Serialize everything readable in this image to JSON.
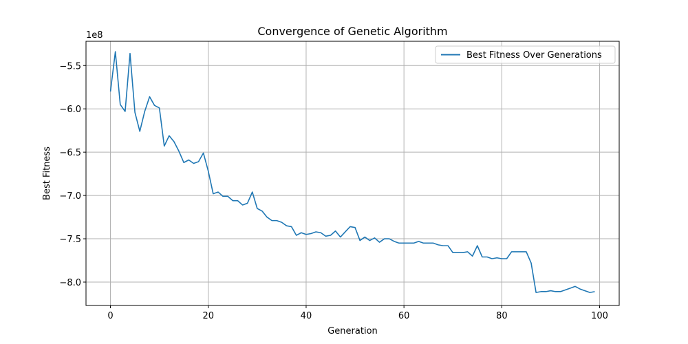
{
  "chart_data": {
    "type": "line",
    "title": "Convergence of Genetic Algorithm",
    "xlabel": "Generation",
    "ylabel": "Best Fitness",
    "y_offset_text": "1e8",
    "xlim": [
      -5,
      104
    ],
    "ylim": [
      -8.27,
      -5.22
    ],
    "x_ticks": [
      0,
      20,
      40,
      60,
      80,
      100
    ],
    "x_tick_labels": [
      "0",
      "20",
      "40",
      "60",
      "80",
      "100"
    ],
    "y_ticks": [
      -8.0,
      -7.5,
      -7.0,
      -6.5,
      -6.0,
      -5.5
    ],
    "y_tick_labels": [
      "−8.0",
      "−7.5",
      "−7.0",
      "−6.5",
      "−6.0",
      "−5.5"
    ],
    "grid": true,
    "legend_position": "top-right",
    "series": [
      {
        "name": "Best Fitness Over Generations",
        "color": "#1f77b4",
        "x": [
          0,
          1,
          2,
          3,
          4,
          5,
          6,
          7,
          8,
          9,
          10,
          11,
          12,
          13,
          14,
          15,
          16,
          17,
          18,
          19,
          20,
          21,
          22,
          23,
          24,
          25,
          26,
          27,
          28,
          29,
          30,
          31,
          32,
          33,
          34,
          35,
          36,
          37,
          38,
          39,
          40,
          41,
          42,
          43,
          44,
          45,
          46,
          47,
          48,
          49,
          50,
          51,
          52,
          53,
          54,
          55,
          56,
          57,
          58,
          59,
          60,
          61,
          62,
          63,
          64,
          65,
          66,
          67,
          68,
          69,
          70,
          71,
          72,
          73,
          74,
          75,
          76,
          77,
          78,
          79,
          80,
          81,
          82,
          83,
          84,
          85,
          86,
          87,
          88,
          89,
          90,
          91,
          92,
          93,
          94,
          95,
          96,
          97,
          98,
          99
        ],
        "y": [
          -5.8,
          -5.34,
          -5.95,
          -6.03,
          -5.36,
          -6.04,
          -6.26,
          -6.03,
          -5.86,
          -5.96,
          -5.99,
          -6.43,
          -6.31,
          -6.38,
          -6.49,
          -6.62,
          -6.59,
          -6.63,
          -6.61,
          -6.51,
          -6.72,
          -6.98,
          -6.96,
          -7.01,
          -7.01,
          -7.06,
          -7.06,
          -7.11,
          -7.09,
          -6.96,
          -7.15,
          -7.18,
          -7.25,
          -7.29,
          -7.29,
          -7.31,
          -7.35,
          -7.36,
          -7.46,
          -7.43,
          -7.45,
          -7.44,
          -7.42,
          -7.43,
          -7.47,
          -7.46,
          -7.41,
          -7.48,
          -7.42,
          -7.36,
          -7.37,
          -7.52,
          -7.48,
          -7.52,
          -7.49,
          -7.54,
          -7.5,
          -7.5,
          -7.53,
          -7.55,
          -7.55,
          -7.55,
          -7.55,
          -7.53,
          -7.55,
          -7.55,
          -7.55,
          -7.57,
          -7.58,
          -7.58,
          -7.66,
          -7.66,
          -7.66,
          -7.65,
          -7.7,
          -7.58,
          -7.71,
          -7.71,
          -7.73,
          -7.72,
          -7.73,
          -7.73,
          -7.65,
          -7.65,
          -7.65,
          -7.65,
          -7.78,
          -8.12,
          -8.11,
          -8.11,
          -8.1,
          -8.11,
          -8.11,
          -8.09,
          -8.07,
          -8.05,
          -8.08,
          -8.1,
          -8.12,
          -8.11
        ]
      }
    ]
  }
}
